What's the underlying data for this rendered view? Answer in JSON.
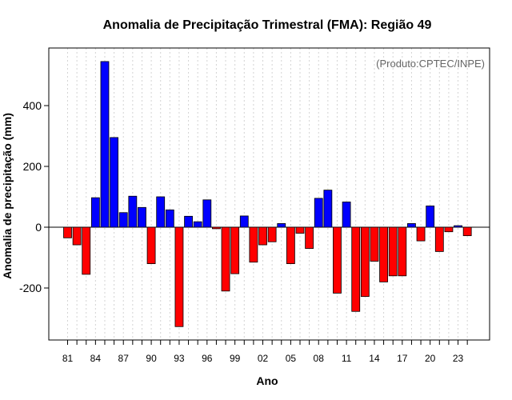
{
  "chart_data": {
    "type": "bar",
    "title": "Anomalia de Precipitação Trimestral (FMA): Região 49",
    "xlabel": "Ano",
    "ylabel": "Anomalia de precipitação (mm)",
    "credit": "(Produto:CPTEC/INPE)",
    "ylim": [
      -380,
      600
    ],
    "yticks": [
      -200,
      0,
      200,
      400
    ],
    "x_start_year": 1981,
    "xtick_labels": [
      "81",
      "84",
      "87",
      "90",
      "93",
      "96",
      "99",
      "02",
      "05",
      "08",
      "11",
      "14",
      "17",
      "20",
      "23"
    ],
    "xtick_years": [
      1981,
      1984,
      1987,
      1990,
      1993,
      1996,
      1999,
      2002,
      2005,
      2008,
      2011,
      2014,
      2017,
      2020,
      2023
    ],
    "values": [
      -35,
      -58,
      -155,
      97,
      545,
      295,
      48,
      102,
      65,
      -120,
      100,
      57,
      -327,
      36,
      18,
      90,
      -5,
      -210,
      -153,
      37,
      -115,
      -58,
      -48,
      12,
      -120,
      -20,
      -70,
      95,
      122,
      -217,
      83,
      -277,
      -228,
      -112,
      -180,
      -160,
      -160,
      12,
      -45,
      70,
      -80,
      -15,
      5,
      -28
    ],
    "positive_color": "#0000ff",
    "negative_color": "#ff0000",
    "grid": true
  }
}
